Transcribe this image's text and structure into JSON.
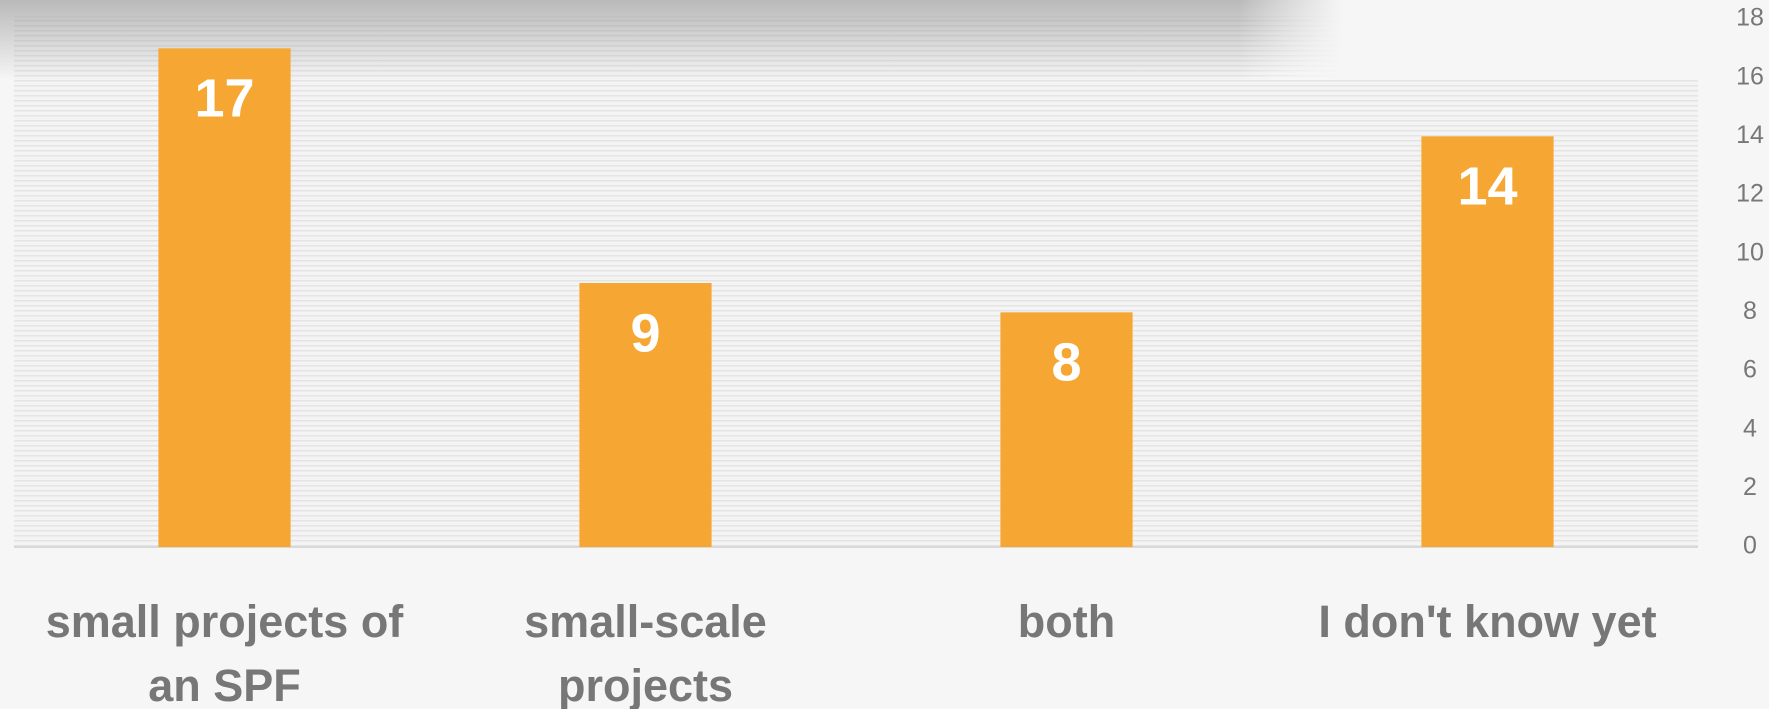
{
  "chart_data": {
    "type": "bar",
    "categories": [
      "small projects of an SPF",
      "small-scale projects",
      "both",
      "I don't know yet"
    ],
    "values": [
      17,
      9,
      8,
      14
    ],
    "color": "#f6a733",
    "ylim": [
      0,
      18
    ],
    "yticks": [
      0,
      2,
      4,
      6,
      8,
      10,
      12,
      14,
      16,
      18
    ],
    "grid": false
  }
}
